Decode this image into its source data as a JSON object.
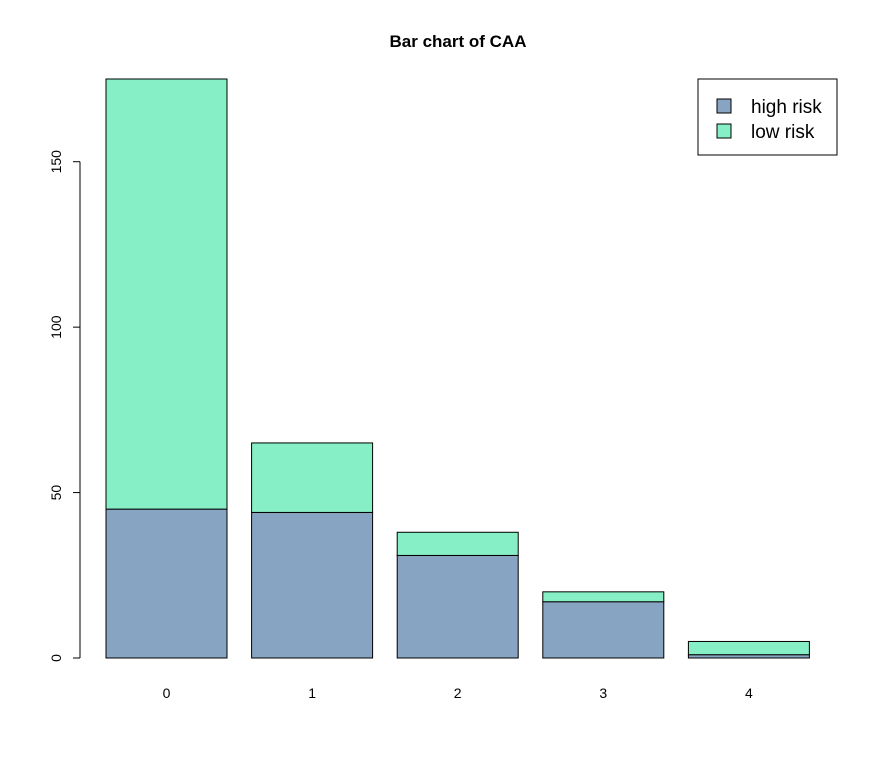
{
  "chart_data": {
    "type": "bar",
    "stacked": true,
    "title": "Bar chart of CAA",
    "xlabel": "",
    "ylabel": "",
    "categories": [
      "0",
      "1",
      "2",
      "3",
      "4"
    ],
    "series": [
      {
        "name": "high risk",
        "values": [
          45,
          44,
          31,
          17,
          1
        ],
        "color": "#87a4c3"
      },
      {
        "name": "low risk",
        "values": [
          130,
          21,
          7,
          3,
          4
        ],
        "color": "#86efc5"
      }
    ],
    "ylim": [
      0,
      175
    ],
    "yticks": [
      "0",
      "50",
      "100",
      "150"
    ],
    "grid": false,
    "legend": "top-right"
  }
}
